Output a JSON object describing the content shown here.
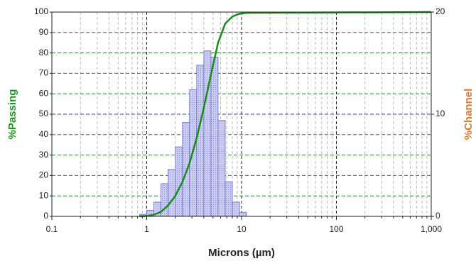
{
  "chart_data": {
    "type": "histogram",
    "x_label": "Microns (µm)",
    "y_label": "%Passing",
    "y2_label": "%Channel",
    "xlog": true,
    "xlim": [
      0.1,
      1000
    ],
    "xticks": [
      0.1,
      1,
      10,
      100,
      {
        "value": 1000,
        "label": "1,000"
      }
    ],
    "ylim": [
      0,
      100
    ],
    "yticks": [
      0,
      10,
      20,
      30,
      40,
      50,
      60,
      70,
      80,
      90,
      100
    ],
    "y2lim": [
      0,
      20
    ],
    "y2ticks": [
      0,
      10,
      20
    ],
    "grid": true,
    "grid_color": "#1a8c1a",
    "y2_grid_color": "#2a3a9a",
    "bins": [
      0.841,
      1,
      1.189,
      1.414,
      1.682,
      2,
      2.378,
      2.828,
      3.364,
      4,
      4.757,
      5.657,
      6.727,
      8,
      9.514,
      11.31
    ],
    "counts": [
      0.2,
      0.6,
      1.4,
      3.2,
      4.6,
      6.8,
      9.2,
      12.4,
      14.8,
      16.2,
      15.6,
      9.4,
      3.4,
      1.4,
      0.4
    ],
    "counts_axis": "y2",
    "bar_color": "#b9bcea",
    "bar_edge": "#6b70c4",
    "line": {
      "color": "#1a8c1a",
      "x": [
        0.841,
        1,
        1.189,
        1.414,
        1.682,
        2,
        2.378,
        2.828,
        3.364,
        4,
        4.757,
        5.657,
        6.727,
        8,
        9.514,
        11.31,
        1000
      ],
      "values": [
        0,
        0.2,
        0.8,
        2.2,
        5.4,
        10,
        16.8,
        26,
        38.4,
        53.2,
        69.4,
        85,
        94.4,
        97.8,
        99.2,
        99.6,
        100
      ]
    }
  }
}
